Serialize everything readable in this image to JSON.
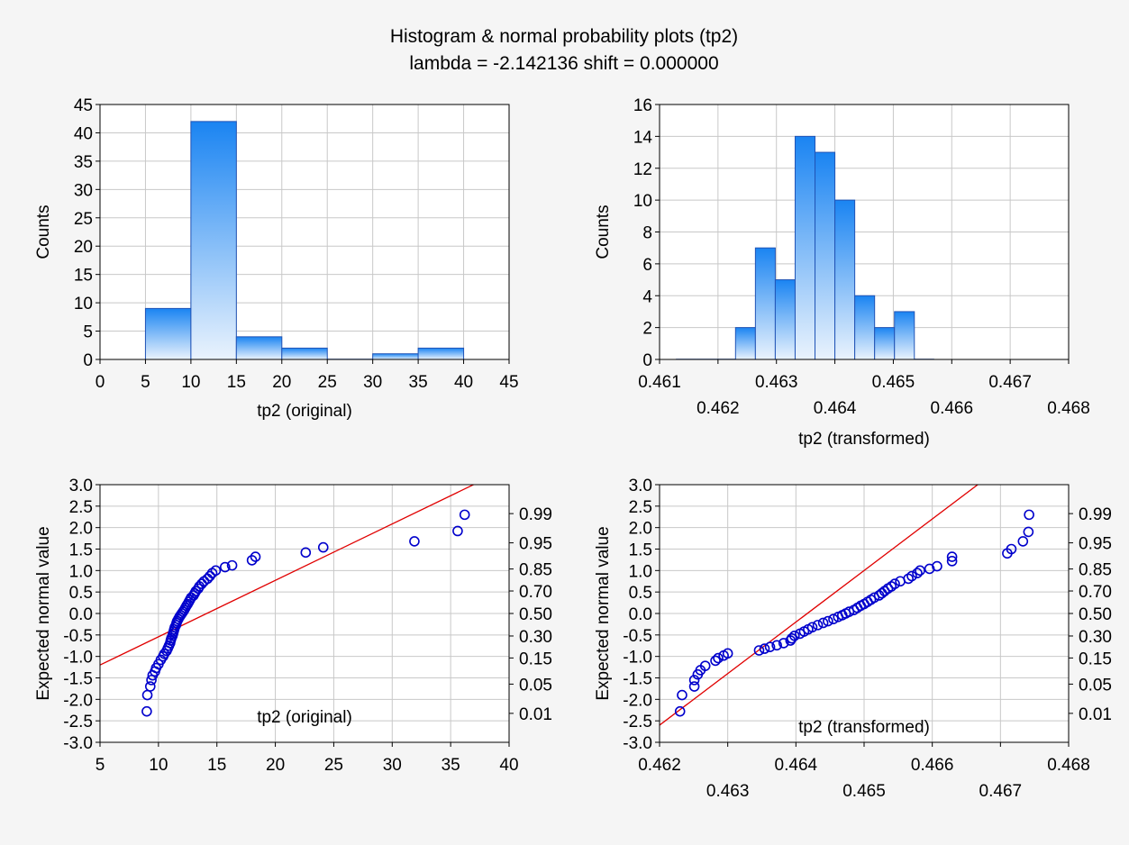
{
  "figure": {
    "title_line1": "Histogram & normal probability plots (tp2)",
    "title_line2": "lambda = -2.142136 shift = 0.000000"
  },
  "colors": {
    "background": "#f5f5f5",
    "plot_area": "#ffffff",
    "bar_top": "#1a84f2",
    "bar_bottom": "#eaf3fd",
    "bar_stroke": "#2154b6",
    "point": "#0000cc",
    "fit_line": "#e00000",
    "grid": "#c8c8c8"
  },
  "chart_data": [
    {
      "id": "hist_original",
      "type": "bar",
      "xlabel": "tp2 (original)",
      "ylabel": "Counts",
      "xlim": [
        0,
        45
      ],
      "ylim": [
        0,
        45
      ],
      "x_ticks": [
        0,
        5,
        10,
        15,
        20,
        25,
        30,
        35,
        40,
        45
      ],
      "y_ticks": [
        0,
        5,
        10,
        15,
        20,
        25,
        30,
        35,
        40,
        45
      ],
      "grid": true,
      "bins": [
        {
          "from": 5,
          "to": 10,
          "count": 9
        },
        {
          "from": 10,
          "to": 15,
          "count": 42
        },
        {
          "from": 15,
          "to": 20,
          "count": 4
        },
        {
          "from": 20,
          "to": 25,
          "count": 2
        },
        {
          "from": 25,
          "to": 30,
          "count": 0
        },
        {
          "from": 30,
          "to": 35,
          "count": 1
        },
        {
          "from": 35,
          "to": 40,
          "count": 2
        }
      ]
    },
    {
      "id": "hist_transformed",
      "type": "bar",
      "xlabel": "tp2 (transformed)",
      "ylabel": "Counts",
      "xlim": [
        0.461,
        0.468
      ],
      "ylim": [
        0,
        16
      ],
      "x_ticks_upper": [
        "0.461",
        "0.463",
        "0.465",
        "0.467"
      ],
      "x_ticks_lower": [
        "0.462",
        "0.464",
        "0.466",
        "0.468"
      ],
      "y_ticks": [
        0,
        2,
        4,
        6,
        8,
        10,
        12,
        14,
        16
      ],
      "grid": true,
      "bins": [
        {
          "from": 0.46128,
          "to": 0.46162,
          "count": 0
        },
        {
          "from": 0.46162,
          "to": 0.46196,
          "count": 0
        },
        {
          "from": 0.46196,
          "to": 0.4623,
          "count": 0
        },
        {
          "from": 0.4623,
          "to": 0.46264,
          "count": 2
        },
        {
          "from": 0.46264,
          "to": 0.46298,
          "count": 7
        },
        {
          "from": 0.46298,
          "to": 0.46332,
          "count": 5
        },
        {
          "from": 0.46332,
          "to": 0.46366,
          "count": 14
        },
        {
          "from": 0.46366,
          "to": 0.464,
          "count": 13
        },
        {
          "from": 0.464,
          "to": 0.46434,
          "count": 10
        },
        {
          "from": 0.46434,
          "to": 0.46468,
          "count": 4
        },
        {
          "from": 0.46468,
          "to": 0.46502,
          "count": 2
        },
        {
          "from": 0.46502,
          "to": 0.46536,
          "count": 3
        },
        {
          "from": 0.46536,
          "to": 0.4657,
          "count": 0
        }
      ]
    },
    {
      "id": "normprob_original",
      "type": "scatter",
      "xlabel": "tp2 (original)",
      "ylabel": "Expected normal value",
      "xlim": [
        5,
        40
      ],
      "ylim": [
        -3,
        3
      ],
      "x_ticks": [
        5,
        10,
        15,
        20,
        25,
        30,
        35,
        40
      ],
      "y_ticks": [
        "3.0",
        "2.5",
        "2.0",
        "1.5",
        "1.0",
        "0.5",
        "0.0",
        "-0.5",
        "-1.0",
        "-1.5",
        "-2.0",
        "-2.5",
        "-3.0"
      ],
      "right_ticks": [
        {
          "label": "0.99",
          "z": 2.326
        },
        {
          "label": "0.95",
          "z": 1.645
        },
        {
          "label": "0.85",
          "z": 1.036
        },
        {
          "label": "0.70",
          "z": 0.524
        },
        {
          "label": "0.50",
          "z": 0.0
        },
        {
          "label": "0.30",
          "z": -0.524
        },
        {
          "label": "0.15",
          "z": -1.036
        },
        {
          "label": "0.05",
          "z": -1.645
        },
        {
          "label": "0.01",
          "z": -2.326
        }
      ],
      "grid": true,
      "fit_line": {
        "x": [
          5,
          40
        ],
        "y": [
          -1.2,
          3.4
        ]
      },
      "points": [
        [
          9.0,
          -2.28
        ],
        [
          9.05,
          -1.9
        ],
        [
          9.3,
          -1.7
        ],
        [
          9.4,
          -1.55
        ],
        [
          9.5,
          -1.44
        ],
        [
          9.7,
          -1.35
        ],
        [
          9.8,
          -1.27
        ],
        [
          10.0,
          -1.18
        ],
        [
          10.2,
          -1.08
        ],
        [
          10.4,
          -1.0
        ],
        [
          10.5,
          -0.94
        ],
        [
          10.7,
          -0.87
        ],
        [
          10.8,
          -0.81
        ],
        [
          10.9,
          -0.75
        ],
        [
          11.0,
          -0.69
        ],
        [
          11.05,
          -0.63
        ],
        [
          11.1,
          -0.58
        ],
        [
          11.2,
          -0.52
        ],
        [
          11.25,
          -0.47
        ],
        [
          11.3,
          -0.42
        ],
        [
          11.35,
          -0.37
        ],
        [
          11.4,
          -0.32
        ],
        [
          11.5,
          -0.27
        ],
        [
          11.55,
          -0.22
        ],
        [
          11.6,
          -0.18
        ],
        [
          11.7,
          -0.13
        ],
        [
          11.8,
          -0.08
        ],
        [
          11.9,
          -0.04
        ],
        [
          12.0,
          0.0
        ],
        [
          12.1,
          0.04
        ],
        [
          12.2,
          0.08
        ],
        [
          12.3,
          0.13
        ],
        [
          12.4,
          0.18
        ],
        [
          12.5,
          0.22
        ],
        [
          12.6,
          0.27
        ],
        [
          12.7,
          0.32
        ],
        [
          12.8,
          0.37
        ],
        [
          13.0,
          0.42
        ],
        [
          13.1,
          0.47
        ],
        [
          13.2,
          0.52
        ],
        [
          13.4,
          0.58
        ],
        [
          13.5,
          0.63
        ],
        [
          13.7,
          0.69
        ],
        [
          13.9,
          0.75
        ],
        [
          14.2,
          0.81
        ],
        [
          14.4,
          0.87
        ],
        [
          14.6,
          0.94
        ],
        [
          14.9,
          1.0
        ],
        [
          15.7,
          1.08
        ],
        [
          16.3,
          1.12
        ],
        [
          18.0,
          1.24
        ],
        [
          18.3,
          1.32
        ],
        [
          22.6,
          1.42
        ],
        [
          24.1,
          1.54
        ],
        [
          31.9,
          1.68
        ],
        [
          35.6,
          1.92
        ],
        [
          36.2,
          2.3
        ]
      ]
    },
    {
      "id": "normprob_transformed",
      "type": "scatter",
      "xlabel": "tp2 (transformed)",
      "ylabel": "Expected normal value",
      "xlim": [
        0.462,
        0.468
      ],
      "ylim": [
        -3,
        3
      ],
      "x_ticks_upper": [
        "0.462",
        "0.464",
        "0.466",
        "0.468"
      ],
      "x_ticks_lower": [
        "0.463",
        "0.465",
        "0.467"
      ],
      "y_ticks": [
        "3.0",
        "2.5",
        "2.0",
        "1.5",
        "1.0",
        "0.5",
        "0.0",
        "-0.5",
        "-1.0",
        "-1.5",
        "-2.0",
        "-2.5",
        "-3.0"
      ],
      "right_ticks": [
        {
          "label": "0.99",
          "z": 2.326
        },
        {
          "label": "0.95",
          "z": 1.645
        },
        {
          "label": "0.85",
          "z": 1.036
        },
        {
          "label": "0.70",
          "z": 0.524
        },
        {
          "label": "0.50",
          "z": 0.0
        },
        {
          "label": "0.30",
          "z": -0.524
        },
        {
          "label": "0.15",
          "z": -1.036
        },
        {
          "label": "0.05",
          "z": -1.645
        },
        {
          "label": "0.01",
          "z": -2.326
        }
      ],
      "grid": true,
      "fit_line": {
        "x": [
          0.462,
          0.468
        ],
        "y": [
          -2.6,
          4.6
        ]
      },
      "points": [
        [
          0.4623,
          -2.28
        ],
        [
          0.46233,
          -1.9
        ],
        [
          0.46251,
          -1.7
        ],
        [
          0.46251,
          -1.55
        ],
        [
          0.46256,
          -1.42
        ],
        [
          0.4626,
          -1.32
        ],
        [
          0.46267,
          -1.22
        ],
        [
          0.46282,
          -1.1
        ],
        [
          0.46286,
          -1.04
        ],
        [
          0.46294,
          -0.98
        ],
        [
          0.463,
          -0.93
        ],
        [
          0.46346,
          -0.86
        ],
        [
          0.46354,
          -0.82
        ],
        [
          0.46362,
          -0.78
        ],
        [
          0.46372,
          -0.74
        ],
        [
          0.46382,
          -0.69
        ],
        [
          0.46392,
          -0.63
        ],
        [
          0.46394,
          -0.58
        ],
        [
          0.46398,
          -0.52
        ],
        [
          0.46406,
          -0.47
        ],
        [
          0.46412,
          -0.42
        ],
        [
          0.46418,
          -0.37
        ],
        [
          0.46424,
          -0.32
        ],
        [
          0.46432,
          -0.27
        ],
        [
          0.4644,
          -0.22
        ],
        [
          0.46447,
          -0.18
        ],
        [
          0.46455,
          -0.13
        ],
        [
          0.46462,
          -0.08
        ],
        [
          0.46468,
          -0.04
        ],
        [
          0.46473,
          0.0
        ],
        [
          0.46478,
          0.04
        ],
        [
          0.46485,
          0.08
        ],
        [
          0.4649,
          0.13
        ],
        [
          0.46495,
          0.18
        ],
        [
          0.465,
          0.22
        ],
        [
          0.46505,
          0.27
        ],
        [
          0.4651,
          0.32
        ],
        [
          0.46515,
          0.37
        ],
        [
          0.46522,
          0.42
        ],
        [
          0.46526,
          0.47
        ],
        [
          0.4653,
          0.52
        ],
        [
          0.46535,
          0.58
        ],
        [
          0.4654,
          0.63
        ],
        [
          0.46545,
          0.69
        ],
        [
          0.46553,
          0.75
        ],
        [
          0.46565,
          0.81
        ],
        [
          0.4657,
          0.87
        ],
        [
          0.46578,
          0.94
        ],
        [
          0.46582,
          1.0
        ],
        [
          0.46596,
          1.04
        ],
        [
          0.46607,
          1.1
        ],
        [
          0.46629,
          1.22
        ],
        [
          0.46629,
          1.32
        ],
        [
          0.4671,
          1.4
        ],
        [
          0.46716,
          1.5
        ],
        [
          0.46733,
          1.68
        ],
        [
          0.46741,
          1.9
        ],
        [
          0.46742,
          2.3
        ]
      ]
    }
  ]
}
